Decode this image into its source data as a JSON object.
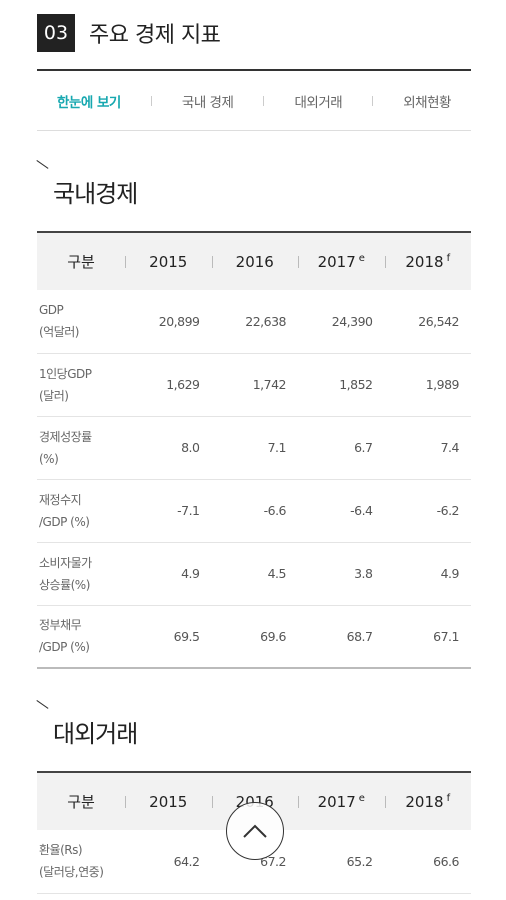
{
  "section": {
    "number": "03",
    "title": "주요 경제 지표"
  },
  "tabs": [
    {
      "label": "한눈에 보기",
      "active": true
    },
    {
      "label": "국내 경제",
      "active": false
    },
    {
      "label": "대외거래",
      "active": false
    },
    {
      "label": "외채현황",
      "active": false
    }
  ],
  "domestic": {
    "title": "국내경제",
    "headers": {
      "category": "구분",
      "y2015": "2015",
      "y2016": "2016",
      "y2017": "2017",
      "y2017_sup": "e",
      "y2018": "2018",
      "y2018_sup": "f"
    },
    "rows": [
      {
        "label": "GDP\n(억달러)",
        "v2015": "20,899",
        "v2016": "22,638",
        "v2017": "24,390",
        "v2018": "26,542"
      },
      {
        "label": "1인당GDP\n(달러)",
        "v2015": "1,629",
        "v2016": "1,742",
        "v2017": "1,852",
        "v2018": "1,989"
      },
      {
        "label": "경제성장률\n(%)",
        "v2015": "8.0",
        "v2016": "7.1",
        "v2017": "6.7",
        "v2018": "7.4"
      },
      {
        "label": "재정수지\n/GDP (%)",
        "v2015": "-7.1",
        "v2016": "-6.6",
        "v2017": "-6.4",
        "v2018": "-6.2"
      },
      {
        "label": "소비자물가\n상승률(%)",
        "v2015": "4.9",
        "v2016": "4.5",
        "v2017": "3.8",
        "v2018": "4.9"
      },
      {
        "label": "정부채무\n/GDP (%)",
        "v2015": "69.5",
        "v2016": "69.6",
        "v2017": "68.7",
        "v2018": "67.1"
      }
    ]
  },
  "external": {
    "title": "대외거래",
    "headers": {
      "category": "구분",
      "y2015": "2015",
      "y2016": "2016",
      "y2017": "2017",
      "y2017_sup": "e",
      "y2018": "2018",
      "y2018_sup": "f"
    },
    "rows": [
      {
        "label": "환율(Rs)\n(달러당,연중)",
        "v2015": "64.2",
        "v2016": "67.2",
        "v2017": "65.2",
        "v2018": "66.6"
      }
    ]
  },
  "scroll_top_icon": "chevron-up-icon"
}
